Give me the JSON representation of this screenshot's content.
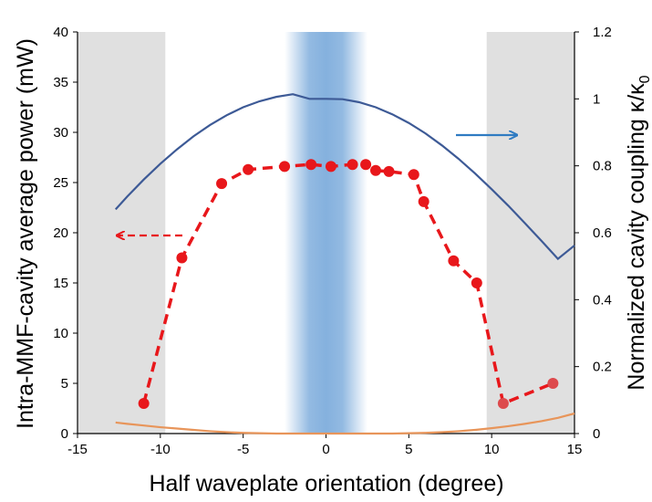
{
  "chart_data": {
    "type": "line",
    "title": "",
    "xlabel": "Half waveplate orientation (degree)",
    "ylabel_left": "Intra-MMF-cavity average power (mW)",
    "ylabel_right": "Normalized cavity coupling κ/κ",
    "ylabel_right_subscript": "0",
    "xlim": [
      -15,
      15
    ],
    "ylim_left": [
      0,
      40
    ],
    "ylim_right": [
      0,
      1.2
    ],
    "x_ticks": [
      "-15",
      "-10",
      "-5",
      "0",
      "5",
      "10",
      "15"
    ],
    "y_left_ticks": [
      "0",
      "5",
      "10",
      "15",
      "20",
      "25",
      "30",
      "35",
      "40"
    ],
    "y_right_ticks": [
      "0",
      "0.2",
      "0.4",
      "0.6",
      "0.8",
      "1",
      "1.2"
    ],
    "grid": false,
    "shaded_regions": [
      {
        "x": [
          -15,
          -9.7
        ],
        "color": "#e0e0e0"
      },
      {
        "x": [
          9.7,
          15
        ],
        "color": "#e0e0e0"
      },
      {
        "x": [
          -2.5,
          2.5
        ],
        "color": "#6fa3d8",
        "gradient": true
      }
    ],
    "series": [
      {
        "axis": "left",
        "style": "dashed-markers",
        "color": "#e8171b",
        "points": [
          [
            -11,
            3.0
          ],
          [
            -8.7,
            17.5
          ],
          [
            -6.3,
            24.9
          ],
          [
            -4.7,
            26.3
          ],
          [
            -2.5,
            26.6
          ],
          [
            -0.9,
            26.8
          ],
          [
            0.3,
            26.6
          ],
          [
            1.6,
            26.8
          ],
          [
            2.4,
            26.8
          ],
          [
            3.0,
            26.2
          ],
          [
            3.8,
            26.1
          ],
          [
            5.3,
            25.8
          ],
          [
            5.9,
            23.1
          ],
          [
            7.7,
            17.2
          ],
          [
            9.1,
            15.0
          ],
          [
            10.7,
            3.0
          ],
          [
            13.7,
            5.0
          ]
        ],
        "faded_points": [
          [
            10.7,
            3.0
          ],
          [
            13.7,
            5.0
          ]
        ]
      },
      {
        "axis": "right",
        "style": "line",
        "color": "#3d5a96",
        "x": [
          -12.7,
          -12,
          -11,
          -10,
          -9,
          -8,
          -7,
          -6,
          -5,
          -4,
          -3,
          -2,
          -1,
          0,
          1,
          2,
          3,
          4,
          5,
          6,
          7,
          8,
          9,
          10,
          11,
          12,
          13,
          14,
          15
        ],
        "values": [
          0.67,
          0.708,
          0.759,
          0.806,
          0.849,
          0.888,
          0.922,
          0.951,
          0.975,
          0.993,
          1.006,
          1.014,
          1.0,
          1.0,
          0.999,
          0.99,
          0.975,
          0.954,
          0.928,
          0.897,
          0.861,
          0.821,
          0.777,
          0.73,
          0.681,
          0.629,
          0.576,
          0.522,
          0.562
        ]
      },
      {
        "axis": "right",
        "style": "line",
        "color": "#e8955a",
        "x": [
          -12.7,
          -12,
          -11,
          -10,
          -9,
          -8,
          -7,
          -6,
          -5,
          -4,
          -3,
          -2,
          -1,
          0,
          1,
          2,
          3,
          4,
          5,
          6,
          7,
          8,
          9,
          10,
          11,
          12,
          13,
          14,
          15
        ],
        "values": [
          0.033,
          0.029,
          0.024,
          0.019,
          0.015,
          0.011,
          0.007,
          0.004,
          0.002,
          0.001,
          0.0,
          0.0,
          0.0,
          0.0,
          0.0,
          0.0,
          0.0,
          0.0,
          0.001,
          0.002,
          0.004,
          0.007,
          0.011,
          0.016,
          0.022,
          0.029,
          0.037,
          0.047,
          0.06
        ]
      }
    ],
    "arrows": [
      {
        "points_to": "right axis",
        "color": "#2f7bc2",
        "style": "solid"
      },
      {
        "points_to": "left axis",
        "color": "#e8171b",
        "style": "dashed"
      }
    ]
  }
}
